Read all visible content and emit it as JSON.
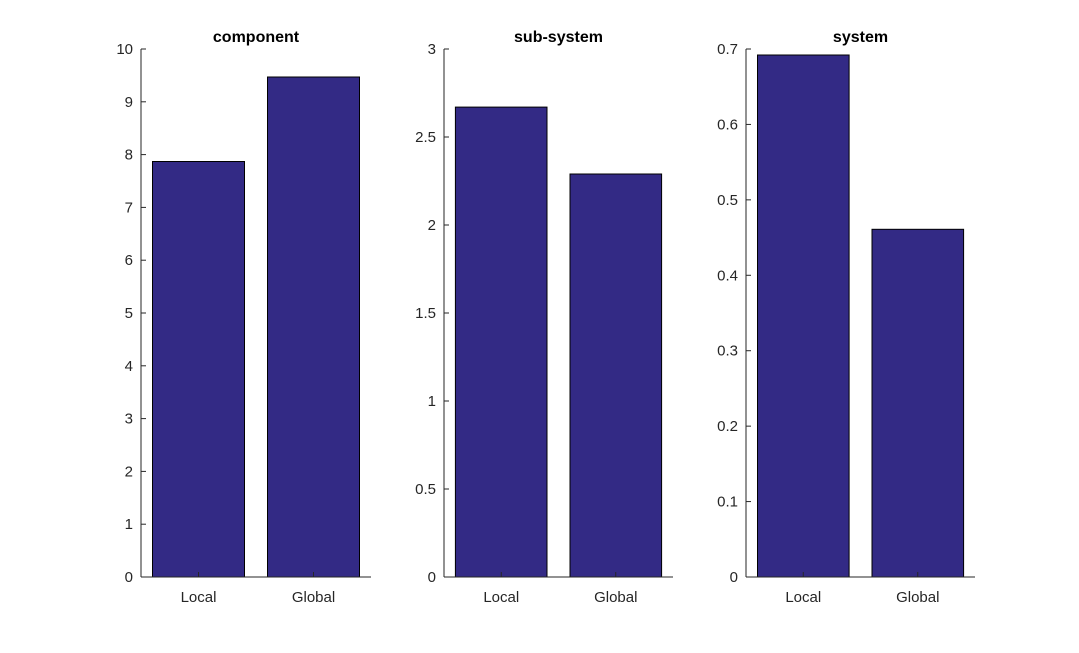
{
  "figure": {
    "bar_color": "#332a85",
    "axis_color": "#262626"
  },
  "chart_data": [
    {
      "type": "bar",
      "title": "component",
      "categories": [
        "Local",
        "Global"
      ],
      "values": [
        7.87,
        9.47
      ],
      "ylim": [
        0,
        10
      ],
      "yticks": [
        0,
        1,
        2,
        3,
        4,
        5,
        6,
        7,
        8,
        9,
        10
      ],
      "ytick_labels": [
        "0",
        "1",
        "2",
        "3",
        "4",
        "5",
        "6",
        "7",
        "8",
        "9",
        "10"
      ],
      "grid": false
    },
    {
      "type": "bar",
      "title": "sub-system",
      "categories": [
        "Local",
        "Global"
      ],
      "values": [
        2.67,
        2.29
      ],
      "ylim": [
        0,
        3
      ],
      "yticks": [
        0,
        0.5,
        1,
        1.5,
        2,
        2.5,
        3
      ],
      "ytick_labels": [
        "0",
        "0.5",
        "1",
        "1.5",
        "2",
        "2.5",
        "3"
      ],
      "grid": false
    },
    {
      "type": "bar",
      "title": "system",
      "categories": [
        "Local",
        "Global"
      ],
      "values": [
        0.692,
        0.461
      ],
      "ylim": [
        0,
        0.7
      ],
      "yticks": [
        0,
        0.1,
        0.2,
        0.3,
        0.4,
        0.5,
        0.6,
        0.7
      ],
      "ytick_labels": [
        "0",
        "0.1",
        "0.2",
        "0.3",
        "0.4",
        "0.5",
        "0.6",
        "0.7"
      ],
      "grid": false
    }
  ]
}
